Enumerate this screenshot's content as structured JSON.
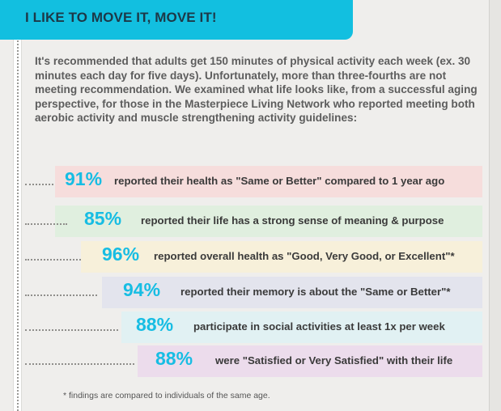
{
  "header": {
    "title": "I LIKE TO MOVE IT, MOVE IT!"
  },
  "intro_text": "It's recommended that adults get 150 minutes of physical activity each week (ex. 30 minutes each day for five days).  Unfortunately, more than three-fourths are not meeting recommendation.  We examined what life looks like, from a successful aging perspective, for those in the Masterpiece Living Network who reported meeting both aerobic activity and muscle strengthening activity guidelines:",
  "stats": [
    {
      "percent": "91%",
      "text": "reported their health as \"Same or Better\" compared to 1 year ago",
      "color": "#f6dddc"
    },
    {
      "percent": "85%",
      "text": "reported their life has a strong sense of meaning & purpose",
      "color": "#e0efdf"
    },
    {
      "percent": "96%",
      "text": "reported overall health as \"Good, Very Good, or Excellent\"*",
      "color": "#f7f0da"
    },
    {
      "percent": "94%",
      "text": "reported their memory is about the \"Same or Better\"*",
      "color": "#e3e4ed"
    },
    {
      "percent": "88%",
      "text": "participate in social activities at least 1x per week",
      "color": "#e1f1f3"
    },
    {
      "percent": "88%",
      "text": "were \"Satisfied or Very Satisfied\" with their life",
      "color": "#ecdcec"
    }
  ],
  "footnote": "* findings are compared to individuals of the same age.",
  "colors": {
    "header_bg": "#12bfe0",
    "accent": "#17bde3",
    "page_bg": "#efeeec"
  }
}
